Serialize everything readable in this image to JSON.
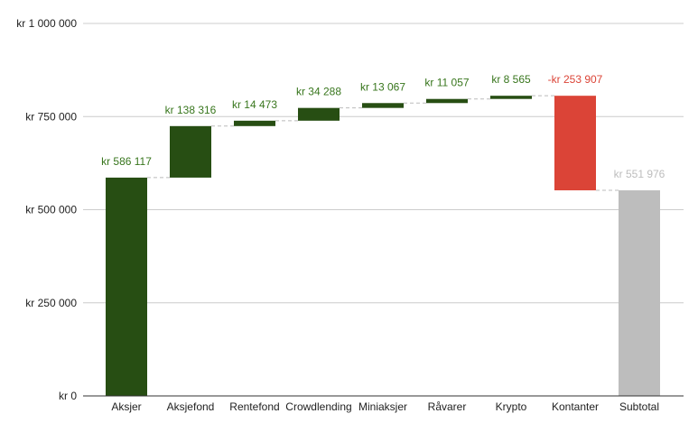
{
  "chart_data": {
    "type": "waterfall",
    "title": "",
    "xlabel": "",
    "ylabel": "",
    "ylim": [
      0,
      1000000
    ],
    "grid": true,
    "legend": "none",
    "yticks": [
      {
        "value": 0,
        "label": "kr   0"
      },
      {
        "value": 250000,
        "label": "kr  250 000"
      },
      {
        "value": 500000,
        "label": "kr  500 000"
      },
      {
        "value": 750000,
        "label": "kr  750 000"
      },
      {
        "value": 1000000,
        "label": "kr 1 000 000"
      }
    ],
    "categories": [
      "Aksjer",
      "Aksjefond",
      "Rentefond",
      "Crowdlending",
      "Miniaksjer",
      "Råvarer",
      "Krypto",
      "Kontanter",
      "Subtotal"
    ],
    "values": [
      586117,
      138316,
      14473,
      34288,
      13067,
      11057,
      8565,
      -253907,
      551976
    ],
    "is_total": [
      false,
      false,
      false,
      false,
      false,
      false,
      false,
      false,
      true
    ],
    "data_labels": [
      "kr  586 117",
      "kr  138 316",
      "kr  14 473",
      "kr  34 288",
      "kr  13 067",
      "kr  11 057",
      "kr  8 565",
      "-kr  253 907",
      "kr  551 976"
    ],
    "colors": {
      "increase": "#274e13",
      "decrease": "#db4437",
      "total": "#bdbdbd",
      "increase_label": "#38761d",
      "decrease_label": "#db4437",
      "total_label": "#bdbdbd",
      "grid": "#cccccc",
      "axis": "#333333",
      "connector": "#bbbbbb"
    }
  }
}
